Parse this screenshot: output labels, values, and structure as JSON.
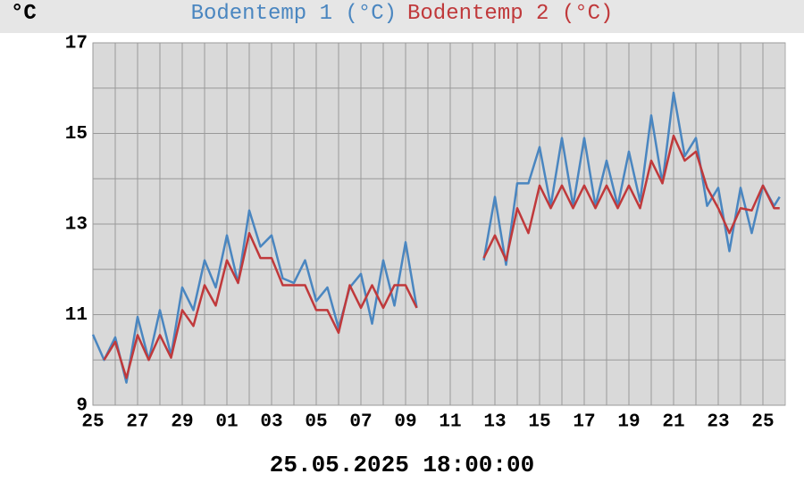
{
  "chart_data": {
    "type": "line",
    "y_unit": "°C",
    "timestamp": "25.05.2025 18:00:00",
    "x": [
      0,
      0.5,
      1,
      1.5,
      2,
      2.5,
      3,
      3.5,
      4,
      4.5,
      5,
      5.5,
      6,
      6.5,
      7,
      7.5,
      8,
      8.5,
      9,
      9.5,
      10,
      10.5,
      11,
      11.5,
      12,
      12.5,
      13,
      13.5,
      14,
      14.5,
      15,
      15.5,
      16,
      16.5,
      17,
      17.5,
      18,
      18.5,
      19,
      19.5,
      20,
      20.5,
      21,
      21.5,
      22,
      22.5,
      23,
      23.5,
      24,
      24.5,
      25,
      25.5,
      26,
      26.5,
      27,
      27.5,
      28,
      28.5,
      29,
      29.5,
      30,
      30.5,
      30.75
    ],
    "series": [
      {
        "name": "Bodentemp 1 (°C)",
        "color": "#4a86c0",
        "values": [
          10.56,
          10.0,
          10.5,
          9.5,
          10.95,
          10.0,
          11.1,
          10.1,
          11.6,
          11.1,
          12.2,
          11.6,
          12.75,
          11.7,
          13.3,
          12.5,
          12.75,
          11.8,
          11.7,
          12.2,
          11.3,
          11.6,
          10.7,
          11.6,
          11.9,
          10.8,
          12.2,
          11.2,
          12.6,
          11.15,
          null,
          null,
          null,
          null,
          null,
          12.2,
          13.6,
          12.1,
          13.9,
          13.9,
          14.7,
          13.4,
          14.9,
          13.4,
          14.9,
          13.4,
          14.4,
          13.4,
          14.6,
          13.5,
          15.4,
          13.9,
          15.9,
          14.5,
          14.9,
          13.4,
          13.8,
          12.4,
          13.8,
          12.8,
          13.85,
          13.4,
          13.6
        ]
      },
      {
        "name": "Bodentemp 2 (°C)",
        "color": "#c0393b",
        "values": [
          null,
          10.0,
          10.4,
          9.6,
          10.55,
          10.0,
          10.55,
          10.05,
          11.1,
          10.75,
          11.65,
          11.2,
          12.2,
          11.7,
          12.8,
          12.25,
          12.25,
          11.65,
          11.65,
          11.65,
          11.1,
          11.1,
          10.6,
          11.65,
          11.15,
          11.65,
          11.15,
          11.65,
          11.65,
          11.15,
          null,
          null,
          null,
          null,
          null,
          12.25,
          12.75,
          12.2,
          13.35,
          12.8,
          13.85,
          13.35,
          13.85,
          13.35,
          13.85,
          13.35,
          13.85,
          13.35,
          13.85,
          13.35,
          14.4,
          13.9,
          14.95,
          14.4,
          14.6,
          13.8,
          13.35,
          12.8,
          13.35,
          13.3,
          13.85,
          13.35,
          13.35
        ]
      }
    ],
    "xlim": [
      0,
      31
    ],
    "xticks": [
      {
        "value": 0,
        "label": "25"
      },
      {
        "value": 2,
        "label": "27"
      },
      {
        "value": 4,
        "label": "29"
      },
      {
        "value": 6,
        "label": "01"
      },
      {
        "value": 8,
        "label": "03"
      },
      {
        "value": 10,
        "label": "05"
      },
      {
        "value": 12,
        "label": "07"
      },
      {
        "value": 14,
        "label": "09"
      },
      {
        "value": 16,
        "label": "11"
      },
      {
        "value": 18,
        "label": "13"
      },
      {
        "value": 20,
        "label": "15"
      },
      {
        "value": 22,
        "label": "17"
      },
      {
        "value": 24,
        "label": "19"
      },
      {
        "value": 26,
        "label": "21"
      },
      {
        "value": 28,
        "label": "23"
      },
      {
        "value": 30,
        "label": "25"
      }
    ],
    "minor_xticks": [
      1,
      3,
      5,
      7,
      9,
      11,
      13,
      15,
      17,
      19,
      21,
      23,
      25,
      27,
      29
    ],
    "ylim": [
      9,
      17
    ],
    "yticks": [
      9,
      11,
      13,
      15,
      17
    ],
    "minor_yticks": [
      10,
      12,
      14,
      16
    ],
    "grid": true
  }
}
